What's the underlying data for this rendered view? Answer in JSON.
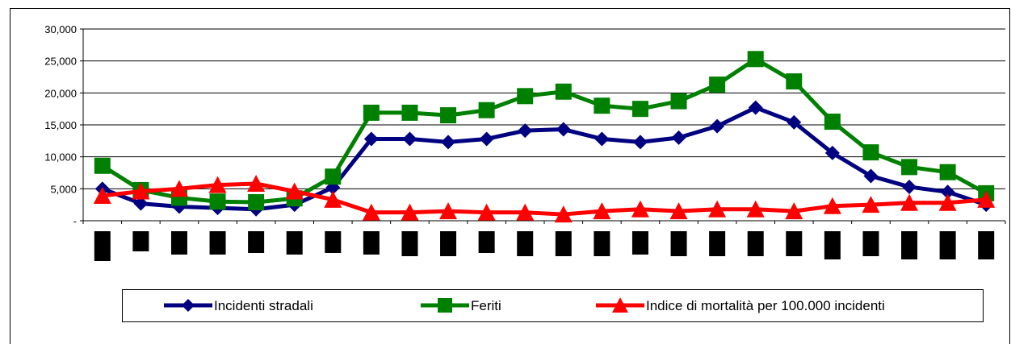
{
  "chart_data": {
    "type": "line",
    "title": "",
    "xlabel": "",
    "ylabel": "",
    "ylim": [
      0,
      30000
    ],
    "y_ticks": [
      {
        "value": 0,
        "label": "-"
      },
      {
        "value": 5000,
        "label": "5,000"
      },
      {
        "value": 10000,
        "label": "10,000"
      },
      {
        "value": 15000,
        "label": "15,000"
      },
      {
        "value": 20000,
        "label": "20,000"
      },
      {
        "value": 25000,
        "label": "25,000"
      },
      {
        "value": 30000,
        "label": "30,000"
      }
    ],
    "grid": "horizontal",
    "legend_position": "bottom",
    "x_labels_redacted": true,
    "categories": [
      "",
      "",
      "",
      "",
      "",
      "",
      "",
      "",
      "",
      "",
      "",
      "",
      "",
      "",
      "",
      "",
      "",
      "",
      "",
      "",
      "",
      "",
      "",
      ""
    ],
    "series": [
      {
        "name": "Incidenti stradali",
        "color": "#000080",
        "marker": "diamond",
        "values": [
          5000,
          2700,
          2200,
          2000,
          1800,
          2500,
          5200,
          12800,
          12800,
          12300,
          12800,
          14100,
          14300,
          12800,
          12300,
          13000,
          14800,
          17700,
          15400,
          10600,
          7000,
          5300,
          4500,
          2500
        ]
      },
      {
        "name": "Feriti",
        "color": "#008000",
        "marker": "square",
        "values": [
          8600,
          4800,
          3600,
          3000,
          2900,
          3500,
          6900,
          16900,
          16900,
          16500,
          17300,
          19500,
          20200,
          18000,
          17500,
          18700,
          21300,
          25300,
          21800,
          15500,
          10700,
          8400,
          7600,
          4300
        ]
      },
      {
        "name": "Indice di mortalità per 100.000 incidenti",
        "color": "#FF0000",
        "marker": "triangle",
        "values": [
          3900,
          4600,
          5000,
          5600,
          5800,
          4600,
          3300,
          1300,
          1300,
          1500,
          1300,
          1300,
          1000,
          1500,
          1800,
          1500,
          1800,
          1800,
          1500,
          2300,
          2500,
          2800,
          2800,
          3300
        ]
      }
    ]
  }
}
